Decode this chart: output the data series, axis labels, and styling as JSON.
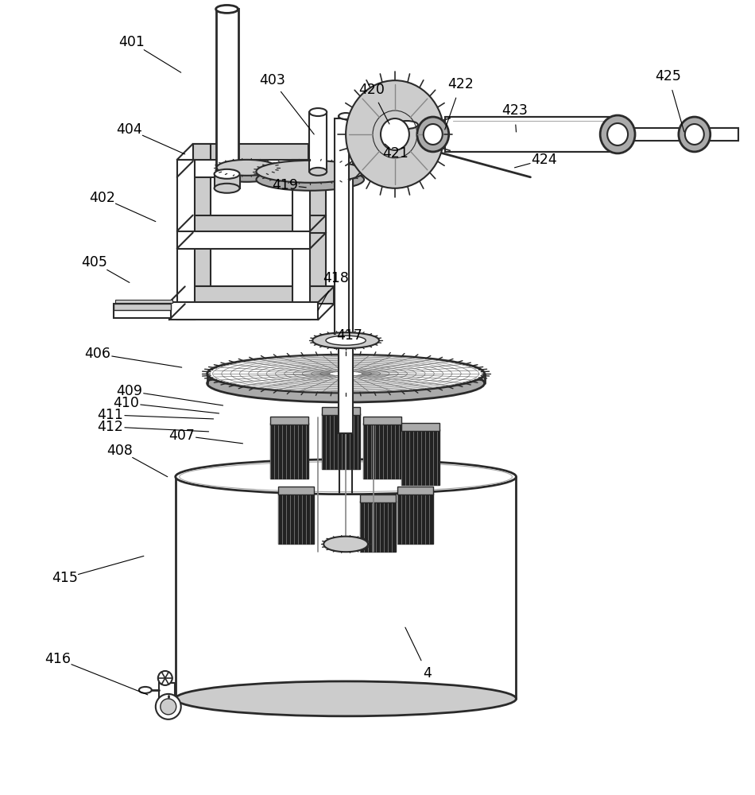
{
  "bg_color": "#ffffff",
  "lc": "#2a2a2a",
  "gray1": "#cccccc",
  "gray2": "#aaaaaa",
  "gray3": "#888888",
  "gray4": "#555555",
  "dark": "#222222",
  "labels": [
    [
      "401",
      165,
      52,
      227,
      90
    ],
    [
      "402",
      128,
      248,
      195,
      278
    ],
    [
      "403",
      342,
      100,
      395,
      168
    ],
    [
      "404",
      162,
      162,
      232,
      193
    ],
    [
      "405",
      118,
      330,
      162,
      355
    ],
    [
      "406",
      122,
      445,
      228,
      462
    ],
    [
      "407",
      228,
      548,
      305,
      558
    ],
    [
      "408",
      150,
      567,
      210,
      600
    ],
    [
      "409",
      162,
      492,
      280,
      510
    ],
    [
      "410",
      158,
      507,
      275,
      520
    ],
    [
      "411",
      138,
      522,
      268,
      527
    ],
    [
      "412",
      138,
      537,
      262,
      543
    ],
    [
      "415",
      80,
      728,
      180,
      700
    ],
    [
      "416",
      72,
      830,
      185,
      875
    ],
    [
      "417",
      440,
      422,
      420,
      420
    ],
    [
      "418",
      422,
      350,
      400,
      390
    ],
    [
      "419",
      358,
      232,
      385,
      235
    ],
    [
      "420",
      468,
      112,
      490,
      155
    ],
    [
      "421",
      498,
      192,
      490,
      185
    ],
    [
      "422",
      580,
      105,
      560,
      162
    ],
    [
      "423",
      648,
      138,
      650,
      165
    ],
    [
      "424",
      685,
      200,
      648,
      210
    ],
    [
      "425",
      842,
      95,
      862,
      165
    ],
    [
      "4",
      538,
      848,
      510,
      790
    ]
  ]
}
